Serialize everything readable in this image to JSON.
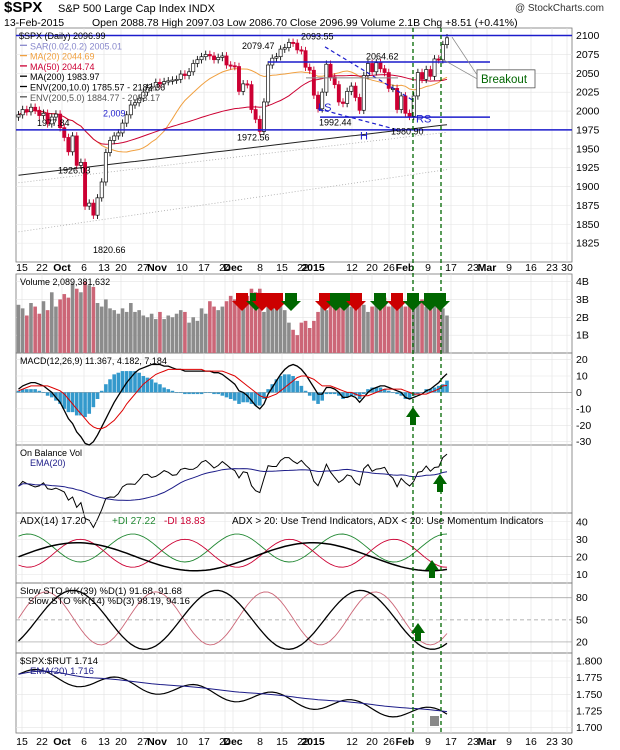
{
  "header": {
    "symbol": "$SPX",
    "description": "S&P 500 Large Cap Index  INDX",
    "copyright": "@ StockCharts.com",
    "date": "13-Feb-2015",
    "quote": "Open 2088.78  High 2097.03  Low 2086.70  Close 2096.99  Volume 2.1B  Chg +8.51 (+0.41%)"
  },
  "colors": {
    "up": "#111111",
    "down": "#cc0033",
    "ma20": "#f0a040",
    "ma50": "#cc0033",
    "ma200": "#222222",
    "env200": "#555555",
    "env20": "#aaaaaa",
    "macd_hist": "#3399cc",
    "arrow": "#006600",
    "hline": "#1c1ccc",
    "vline": "#006600"
  },
  "chart_data": [
    {
      "type": "candlestick",
      "panel": "price",
      "legend": [
        "$SPX (Daily) 2096.99",
        "SAR(0.02,0.2) 2005.01",
        "MA(20) 2044.69",
        "MA(50) 2044.74",
        "MA(200) 1983.97",
        "ENV(200,10.0) 1785.57 - 2182.36",
        "ENV(200,5.0) 1884.77 - 2083.17"
      ],
      "ylim": [
        1800,
        2110
      ],
      "y_ticks": [
        1825,
        1850,
        1875,
        1900,
        1925,
        1950,
        1975,
        2000,
        2025,
        2050,
        2075,
        2100
      ],
      "x_labels": [
        "15",
        "22",
        "Oct",
        "6",
        "13",
        "20",
        "27",
        "Nov",
        "10",
        "17",
        "24",
        "Dec",
        "8",
        "15",
        "22",
        "2015",
        "12",
        "20",
        "26",
        "Feb",
        "9",
        "17",
        "23",
        "Mar",
        "9",
        "16",
        "23",
        "30"
      ],
      "close": [
        1995,
        2002,
        1999,
        2005,
        2001,
        1994,
        1997,
        1983,
        1992,
        1996,
        1978,
        1965,
        1946,
        1967,
        1928,
        1932,
        1874,
        1878,
        1862,
        1885,
        1906,
        1945,
        1961,
        1967,
        1971,
        1984,
        1995,
        2008,
        2011,
        2017,
        2025,
        2031,
        2032,
        2038,
        2036,
        2039,
        2040,
        2041,
        2042,
        2049,
        2047,
        2052,
        2063,
        2068,
        2072,
        2075,
        2073,
        2068,
        2071,
        2073,
        2061,
        2060,
        2059,
        2026,
        2036,
        2035,
        2002,
        1989,
        1973,
        2012,
        2061,
        2070,
        2072,
        2082,
        2084,
        2091,
        2090,
        2081,
        2080,
        2058,
        2054,
        2021,
        2003,
        2025,
        2062,
        2045,
        2035,
        2012,
        2010,
        2026,
        2033,
        2018,
        2001,
        2047,
        2063,
        2052,
        2064,
        2056,
        2051,
        2030,
        2030,
        2002,
        2020,
        1997,
        1993,
        2020,
        2051,
        2042,
        2055,
        2046,
        2069,
        2068,
        2088,
        2097
      ],
      "annotations": [
        {
          "text": "2079.47"
        },
        {
          "text": "2093.55"
        },
        {
          "text": "2064.62"
        },
        {
          "text": "1977.84"
        },
        {
          "text": "2,009"
        },
        {
          "text": "1926.03"
        },
        {
          "text": "1820.66"
        },
        {
          "text": "1972.56"
        },
        {
          "text": "1992.44"
        },
        {
          "text": "1980.90"
        },
        {
          "text": "LS"
        },
        {
          "text": "RS"
        },
        {
          "text": "H"
        },
        {
          "text": "Breakout"
        }
      ]
    },
    {
      "type": "bar",
      "panel": "volume",
      "legend": [
        "Volume 2,089,381,632"
      ],
      "y_ticks": [
        "1B",
        "2B",
        "3B",
        "4B"
      ],
      "ylim": [
        0,
        4.2
      ],
      "values": [
        2.7,
        2.5,
        2.1,
        2.8,
        2.6,
        2.2,
        2.9,
        2.4,
        3.4,
        2.6,
        3.0,
        3.3,
        3.1,
        3.9,
        3.6,
        3.4,
        4.0,
        3.8,
        3.7,
        2.8,
        2.6,
        3.0,
        2.5,
        2.4,
        2.2,
        2.5,
        2.3,
        2.8,
        2.3,
        2.4,
        2.1,
        2.0,
        2.2,
        1.9,
        2.3,
        1.9,
        2.1,
        2.0,
        2.2,
        2.4,
        2.3,
        1.7,
        2.0,
        1.8,
        2.5,
        2.2,
        2.9,
        2.6,
        2.4,
        2.6,
        2.9,
        3.2,
        3.0,
        3.3,
        2.8,
        3.2,
        3.6,
        3.4,
        3.6,
        2.3,
        2.9,
        3.0,
        3.2,
        2.7,
        2.4,
        1.7,
        1.3,
        1.0,
        1.7,
        1.8,
        1.4,
        1.8,
        2.3,
        2.7,
        2.4,
        2.9,
        3.1,
        3.3,
        2.6,
        2.9,
        2.6,
        2.8,
        3.0,
        2.7,
        2.3,
        2.6,
        3.0,
        2.8,
        3.1,
        2.6,
        2.9,
        3.3,
        2.9,
        2.6,
        3.1,
        2.8,
        2.7,
        3.0,
        2.6,
        2.8,
        2.9,
        2.6,
        2.5,
        2.1
      ]
    },
    {
      "type": "line",
      "panel": "macd",
      "legend": [
        "MACD(12,26,9) 11.367, 4.182, 7.184"
      ],
      "y_ticks": [
        -30,
        -20,
        -10,
        0,
        10,
        20
      ],
      "ylim": [
        -32,
        24
      ],
      "macd": [
        2,
        4,
        5,
        6,
        6,
        5,
        4,
        2,
        0,
        -3,
        -6,
        -11,
        -16,
        -19,
        -24,
        -27,
        -31,
        -32,
        -30,
        -26,
        -21,
        -16,
        -11,
        -6,
        -2,
        2,
        6,
        9,
        12,
        14,
        15,
        16,
        17,
        17,
        17,
        16,
        16,
        15,
        14,
        14,
        13,
        13,
        13,
        13,
        13,
        13,
        13,
        12,
        12,
        11,
        9,
        7,
        5,
        1,
        0,
        -2,
        -5,
        -8,
        -10,
        -7,
        -1,
        3,
        7,
        11,
        14,
        16,
        17,
        16,
        14,
        11,
        7,
        3,
        -1,
        -1,
        3,
        3,
        2,
        0,
        -3,
        -3,
        -2,
        -3,
        -6,
        -3,
        0,
        2,
        3,
        4,
        4,
        3,
        2,
        1,
        0,
        -3,
        -4,
        -3,
        -2,
        -1,
        1,
        2,
        4,
        6,
        9,
        11.4
      ],
      "signal": [
        1,
        2,
        3,
        4,
        4,
        4,
        4,
        4,
        3,
        2,
        1,
        -1,
        -4,
        -7,
        -10,
        -13,
        -16,
        -19,
        -21,
        -22,
        -22,
        -21,
        -19,
        -17,
        -14,
        -11,
        -7,
        -4,
        -1,
        2,
        5,
        7,
        9,
        11,
        12,
        13,
        14,
        14,
        14,
        14,
        14,
        14,
        14,
        14,
        14,
        13,
        13,
        13,
        13,
        13,
        12,
        11,
        10,
        8,
        6,
        4,
        2,
        0,
        -2,
        -3,
        -3,
        -2,
        -1,
        1,
        3,
        5,
        7,
        9,
        10,
        10,
        9,
        8,
        6,
        4,
        4,
        4,
        3,
        2,
        1,
        0,
        0,
        -1,
        -2,
        -2,
        -2,
        -1,
        0,
        1,
        2,
        2,
        2,
        2,
        2,
        1,
        0,
        -1,
        -1,
        -1,
        -1,
        0,
        1,
        2,
        4,
        4.2
      ],
      "histogram": [
        1,
        2,
        2,
        2,
        2,
        1,
        0,
        -2,
        -3,
        -5,
        -7,
        -10,
        -12,
        -12,
        -14,
        -14,
        -15,
        -13,
        -9,
        -4,
        1,
        5,
        8,
        11,
        12,
        13,
        13,
        13,
        13,
        12,
        10,
        9,
        8,
        6,
        5,
        3,
        2,
        1,
        0,
        0,
        -1,
        -1,
        -1,
        -1,
        -1,
        0,
        0,
        -1,
        -1,
        -2,
        -3,
        -4,
        -5,
        -7,
        -6,
        -6,
        -7,
        -8,
        -8,
        -4,
        2,
        5,
        8,
        10,
        11,
        11,
        10,
        7,
        4,
        1,
        -2,
        -5,
        -7,
        -5,
        -1,
        -1,
        -1,
        -2,
        -4,
        -3,
        -2,
        -2,
        -4,
        -1,
        2,
        3,
        3,
        3,
        2,
        1,
        0,
        -1,
        -2,
        -4,
        -4,
        -2,
        -1,
        0,
        2,
        2,
        3,
        4,
        5,
        7.2
      ]
    },
    {
      "type": "line",
      "panel": "obv",
      "legend": [
        "On Balance Vol",
        "EMA(20)"
      ]
    },
    {
      "type": "line",
      "panel": "adx",
      "legend": [
        "ADX(14) 17.20",
        "+DI 27.22",
        "-DI 18.83",
        "ADX > 20: Use Trend Indicators, ADX < 20: Use Momentum Indicators"
      ],
      "y_ticks": [
        10,
        20,
        30,
        40
      ],
      "ylim": [
        5,
        45
      ]
    },
    {
      "type": "line",
      "panel": "sto",
      "legend": [
        "Slow STO %K(39) %D(1) 91.68, 91.68",
        "Slow STO %K(14) %D(3) 98.19, 94.16"
      ],
      "y_ticks": [
        20,
        50,
        80
      ],
      "ylim": [
        5,
        100
      ]
    },
    {
      "type": "line",
      "panel": "ratio",
      "legend": [
        "$SPX:$RUT 1.714",
        "EMA(20) 1.716"
      ],
      "y_ticks": [
        1.7,
        1.725,
        1.75,
        1.775,
        1.8
      ],
      "ylim": [
        1.692,
        1.812
      ]
    }
  ]
}
